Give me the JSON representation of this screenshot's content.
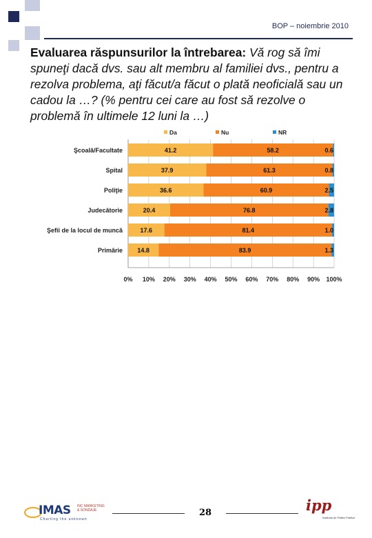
{
  "header": {
    "label": "BOP – noiembrie 2010"
  },
  "title": {
    "bold": "Evaluarea răspunsurilor la întrebarea:",
    "italic": " Vă rog să îmi spuneţi dacă dvs. sau alt membru al familiei dvs., pentru a rezolva problema, aţi făcut/a făcut o plată neoficială sau un cadou la …? (% pentru cei care au fost să rezolve o problemă în ultimele 12 luni la …)"
  },
  "colors": {
    "da": "#f9b84a",
    "nu": "#f58220",
    "nr": "#2e8fd0",
    "grid": "#bbbbbb"
  },
  "chart_data": {
    "type": "bar",
    "orientation": "horizontal",
    "stacked": true,
    "percent_stacked": true,
    "categories": [
      "Şcoală/Facultate",
      "Spital",
      "Poliţie",
      "Judecătorie",
      "Şefii de la locul de muncă",
      "Primărie"
    ],
    "series": [
      {
        "name": "Da",
        "values": [
          41.2,
          37.9,
          36.6,
          20.4,
          17.6,
          14.8
        ]
      },
      {
        "name": "Nu",
        "values": [
          58.2,
          61.3,
          60.9,
          76.8,
          81.4,
          83.9
        ]
      },
      {
        "name": "NR",
        "values": [
          0.6,
          0.8,
          2.5,
          2.8,
          1.0,
          1.3
        ]
      }
    ],
    "value_labels": [
      [
        "41.2",
        "37.9",
        "36.6",
        "20.4",
        "17.6",
        "14.8"
      ],
      [
        "58.2",
        "61.3",
        "60.9",
        "76.8",
        "81.4",
        "83.9"
      ],
      [
        "0.6",
        "0.8",
        "2.5",
        "2.8",
        "1.0",
        "1.3"
      ]
    ],
    "xticks": [
      "0%",
      "10%",
      "20%",
      "30%",
      "40%",
      "50%",
      "60%",
      "70%",
      "80%",
      "90%",
      "100%"
    ],
    "xlim": [
      0,
      100
    ],
    "legend": "top",
    "grid": true
  },
  "footer": {
    "page_number": "28",
    "logo_left": "IMAS",
    "logo_left_sub": "INC MARKETING & SONDAJE",
    "logo_left_tag": "Charting the unknown",
    "logo_right": "ipp",
    "logo_right_sub": "Institutul de Politici Publice"
  }
}
